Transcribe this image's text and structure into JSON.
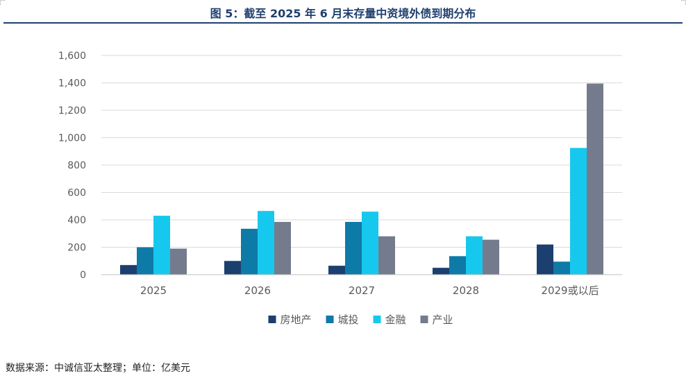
{
  "title": "图 5：截至 2025 年 6 月末存量中资境外债到期分布",
  "source": "数据来源：中诚信亚太整理；单位：亿美元",
  "chart_data": {
    "type": "bar",
    "title": "图 5：截至 2025 年 6 月末存量中资境外债到期分布",
    "xlabel": "",
    "ylabel": "",
    "ylim": [
      0,
      1600
    ],
    "yticks": [
      0,
      200,
      400,
      600,
      800,
      1000,
      1200,
      1400,
      1600
    ],
    "ytick_labels": [
      "0",
      "200",
      "400",
      "600",
      "800",
      "1,000",
      "1,200",
      "1,400",
      "1,600"
    ],
    "categories": [
      "2025",
      "2026",
      "2027",
      "2028",
      "2029或以后"
    ],
    "series": [
      {
        "name": "房地产",
        "color": "#1b3f6e",
        "values": [
          70,
          100,
          65,
          50,
          220
        ]
      },
      {
        "name": "城投",
        "color": "#0e7aa8",
        "values": [
          200,
          335,
          385,
          135,
          95
        ]
      },
      {
        "name": "金融",
        "color": "#16c8ee",
        "values": [
          430,
          465,
          460,
          280,
          925
        ]
      },
      {
        "name": "产业",
        "color": "#747b8d",
        "values": [
          190,
          385,
          280,
          255,
          1395
        ]
      }
    ],
    "grid": true,
    "legend": "bottom"
  }
}
